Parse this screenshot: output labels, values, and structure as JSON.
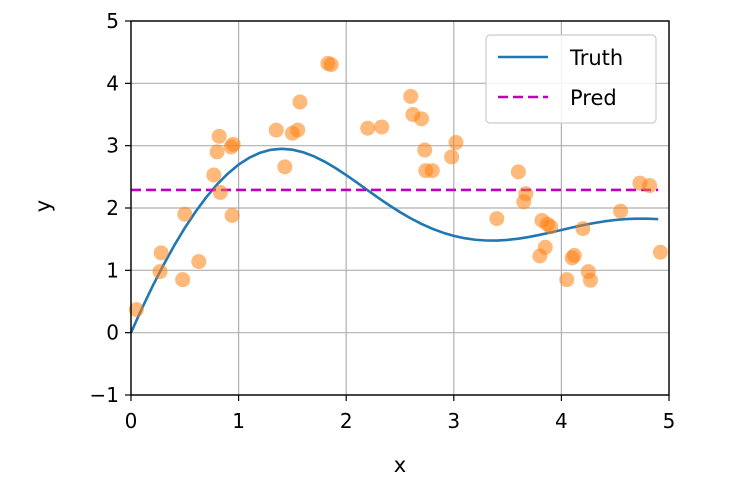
{
  "chart_data": {
    "type": "line",
    "xlabel": "x",
    "ylabel": "y",
    "xlim": [
      0,
      5
    ],
    "ylim": [
      -1,
      5
    ],
    "xticks": [
      "0",
      "1",
      "2",
      "3",
      "4",
      "5"
    ],
    "yticks": [
      "−1",
      "0",
      "1",
      "2",
      "3",
      "4",
      "5"
    ],
    "grid": true,
    "legend_position": "top-right",
    "series": [
      {
        "name": "Truth",
        "kind": "line",
        "color": "#1f77b4",
        "style": "solid",
        "x": [
          0.0,
          0.1,
          0.2,
          0.3,
          0.4,
          0.5,
          0.6,
          0.7,
          0.8,
          0.9,
          1.0,
          1.1,
          1.2,
          1.3,
          1.4,
          1.5,
          1.6,
          1.7,
          1.8,
          1.9,
          2.0,
          2.1,
          2.2,
          2.3,
          2.4,
          2.5,
          2.6,
          2.7,
          2.8,
          2.9,
          3.0,
          3.1,
          3.2,
          3.3,
          3.4,
          3.5,
          3.6,
          3.7,
          3.8,
          3.9,
          4.0,
          4.1,
          4.2,
          4.3,
          4.4,
          4.5,
          4.6,
          4.7,
          4.8,
          4.9
        ],
        "y": [
          0.0,
          0.3833,
          0.7438,
          1.0805,
          1.3928,
          1.6798,
          1.9404,
          2.1735,
          2.3779,
          2.5524,
          2.6958,
          2.8074,
          2.8866,
          2.9337,
          2.9494,
          2.9354,
          2.8942,
          2.8289,
          2.7432,
          2.6415,
          2.528,
          2.4074,
          2.2839,
          2.1617,
          2.0441,
          1.9341,
          1.8336,
          1.7445,
          1.6676,
          1.6036,
          1.5529,
          1.5153,
          1.4906,
          1.4785,
          1.4781,
          1.4884,
          1.5082,
          1.5359,
          1.5698,
          1.6076,
          1.6473,
          1.6868,
          1.7242,
          1.7578,
          1.7858,
          1.8074,
          1.8219,
          1.829,
          1.8287,
          1.8216
        ]
      },
      {
        "name": "Pred",
        "kind": "line",
        "color": "#bf00bf",
        "style": "dashed",
        "x": [
          0.0,
          4.9
        ],
        "y": [
          2.29,
          2.29
        ]
      },
      {
        "kind": "scatter",
        "color": "#ff7f0e",
        "x": [
          0.05,
          0.27,
          0.28,
          0.48,
          0.5,
          0.63,
          0.77,
          0.8,
          0.82,
          0.83,
          0.93,
          0.94,
          0.95,
          1.35,
          1.43,
          1.5,
          1.55,
          1.57,
          1.83,
          1.86,
          2.2,
          2.33,
          2.6,
          2.62,
          2.7,
          2.73,
          2.74,
          2.8,
          2.98,
          3.02,
          3.4,
          3.6,
          3.65,
          3.67,
          3.8,
          3.82,
          3.85,
          3.87,
          3.9,
          4.05,
          4.1,
          4.12,
          4.2,
          4.25,
          4.27,
          4.55,
          4.73,
          4.82,
          4.92
        ],
        "y": [
          0.37,
          0.98,
          1.28,
          0.85,
          1.9,
          1.14,
          2.53,
          2.9,
          3.15,
          2.25,
          2.98,
          1.88,
          3.02,
          3.25,
          2.66,
          3.2,
          3.25,
          3.7,
          4.32,
          4.3,
          3.28,
          3.3,
          3.79,
          3.5,
          3.43,
          2.93,
          2.6,
          2.6,
          2.82,
          3.05,
          1.83,
          2.58,
          2.1,
          2.23,
          1.23,
          1.8,
          1.37,
          1.74,
          1.7,
          0.85,
          1.2,
          1.24,
          1.67,
          0.98,
          0.84,
          1.95,
          2.4,
          2.36,
          1.29
        ]
      }
    ]
  }
}
